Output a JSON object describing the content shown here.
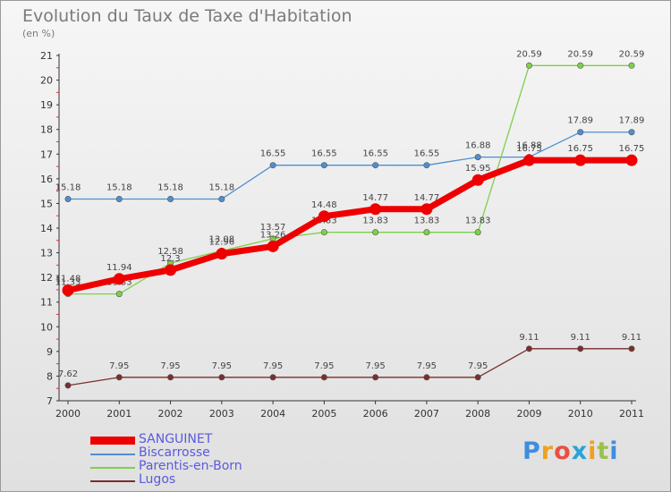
{
  "header": {
    "title": "Evolution du Taux de Taxe d'Habitation",
    "subtitle": "(en %)"
  },
  "logo": {
    "letters": [
      "P",
      "r",
      "o",
      "x",
      "i",
      "t",
      "i"
    ],
    "colors": [
      "#3e8ede",
      "#f0a020",
      "#e85040",
      "#2aa3d8",
      "#f0a020",
      "#9bc14b",
      "#3e8ede"
    ]
  },
  "chart_data": {
    "type": "line",
    "title": "Evolution du Taux de Taxe d'Habitation",
    "ylabel": "(en %)",
    "xlabel": "",
    "ylim": [
      7,
      21
    ],
    "yticks": [
      7,
      8,
      9,
      10,
      11,
      12,
      13,
      14,
      15,
      16,
      17,
      18,
      19,
      20,
      21
    ],
    "x": [
      2000,
      2001,
      2002,
      2003,
      2004,
      2005,
      2006,
      2007,
      2008,
      2009,
      2010,
      2011
    ],
    "grid": false,
    "legend_position": "bottom-left",
    "series": [
      {
        "name": "SANGUINET",
        "color": "#ee0000",
        "values": [
          11.48,
          11.94,
          12.3,
          12.96,
          13.26,
          14.48,
          14.77,
          14.77,
          15.95,
          16.75,
          16.75,
          16.75
        ]
      },
      {
        "name": "Biscarrosse",
        "color": "#4f8fd0",
        "values": [
          15.18,
          15.18,
          15.18,
          15.18,
          16.55,
          16.55,
          16.55,
          16.55,
          16.88,
          16.88,
          17.89,
          17.89
        ]
      },
      {
        "name": "Parentis-en-Born",
        "color": "#7ed04a",
        "values": [
          11.33,
          11.33,
          12.58,
          13.08,
          13.57,
          13.83,
          13.83,
          13.83,
          13.83,
          20.59,
          20.59,
          20.59
        ]
      },
      {
        "name": "Lugos",
        "color": "#7a2e2e",
        "values": [
          7.62,
          7.95,
          7.95,
          7.95,
          7.95,
          7.95,
          7.95,
          7.95,
          7.95,
          9.11,
          9.11,
          9.11
        ]
      }
    ]
  }
}
